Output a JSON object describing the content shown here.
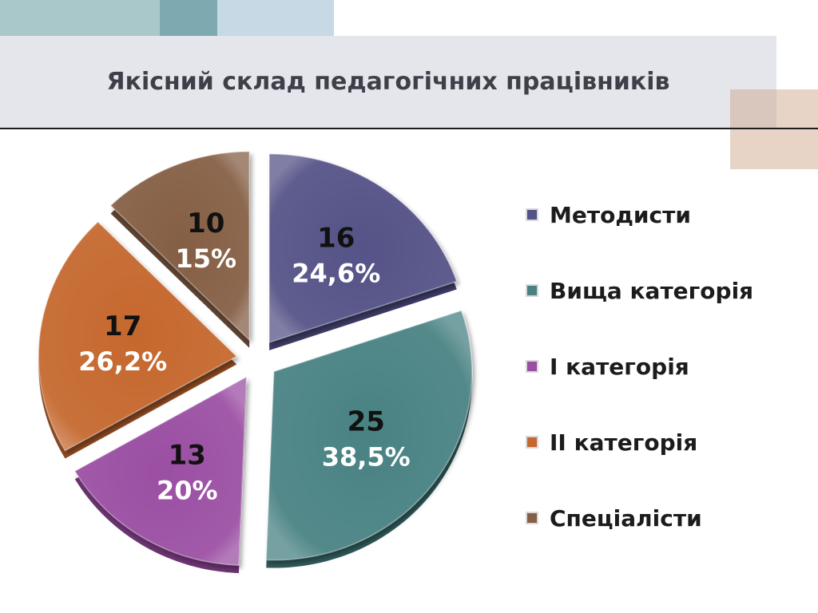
{
  "slide": {
    "title": "Якісний склад педагогічних працівників"
  },
  "chart_data": {
    "type": "pie",
    "exploded": true,
    "legend_position": "right",
    "slices": [
      {
        "category": "Методисти",
        "value": 16,
        "percent_label": "24,6%",
        "color": "#545287",
        "side": "#3e3c68"
      },
      {
        "category": "Вища категорія",
        "value": 25,
        "percent_label": "38,5%",
        "color": "#4a8283",
        "side": "#2f5a5b"
      },
      {
        "category": "І категорія",
        "value": 13,
        "percent_label": "20%",
        "color": "#9b4fa3",
        "side": "#6d3473"
      },
      {
        "category": "ІІ категорія",
        "value": 17,
        "percent_label": "26,2%",
        "color": "#c5672f",
        "side": "#8e4a22"
      },
      {
        "category": "Спеціалісти",
        "value": 10,
        "percent_label": "15%",
        "color": "#855f45",
        "side": "#5e4331"
      }
    ]
  }
}
